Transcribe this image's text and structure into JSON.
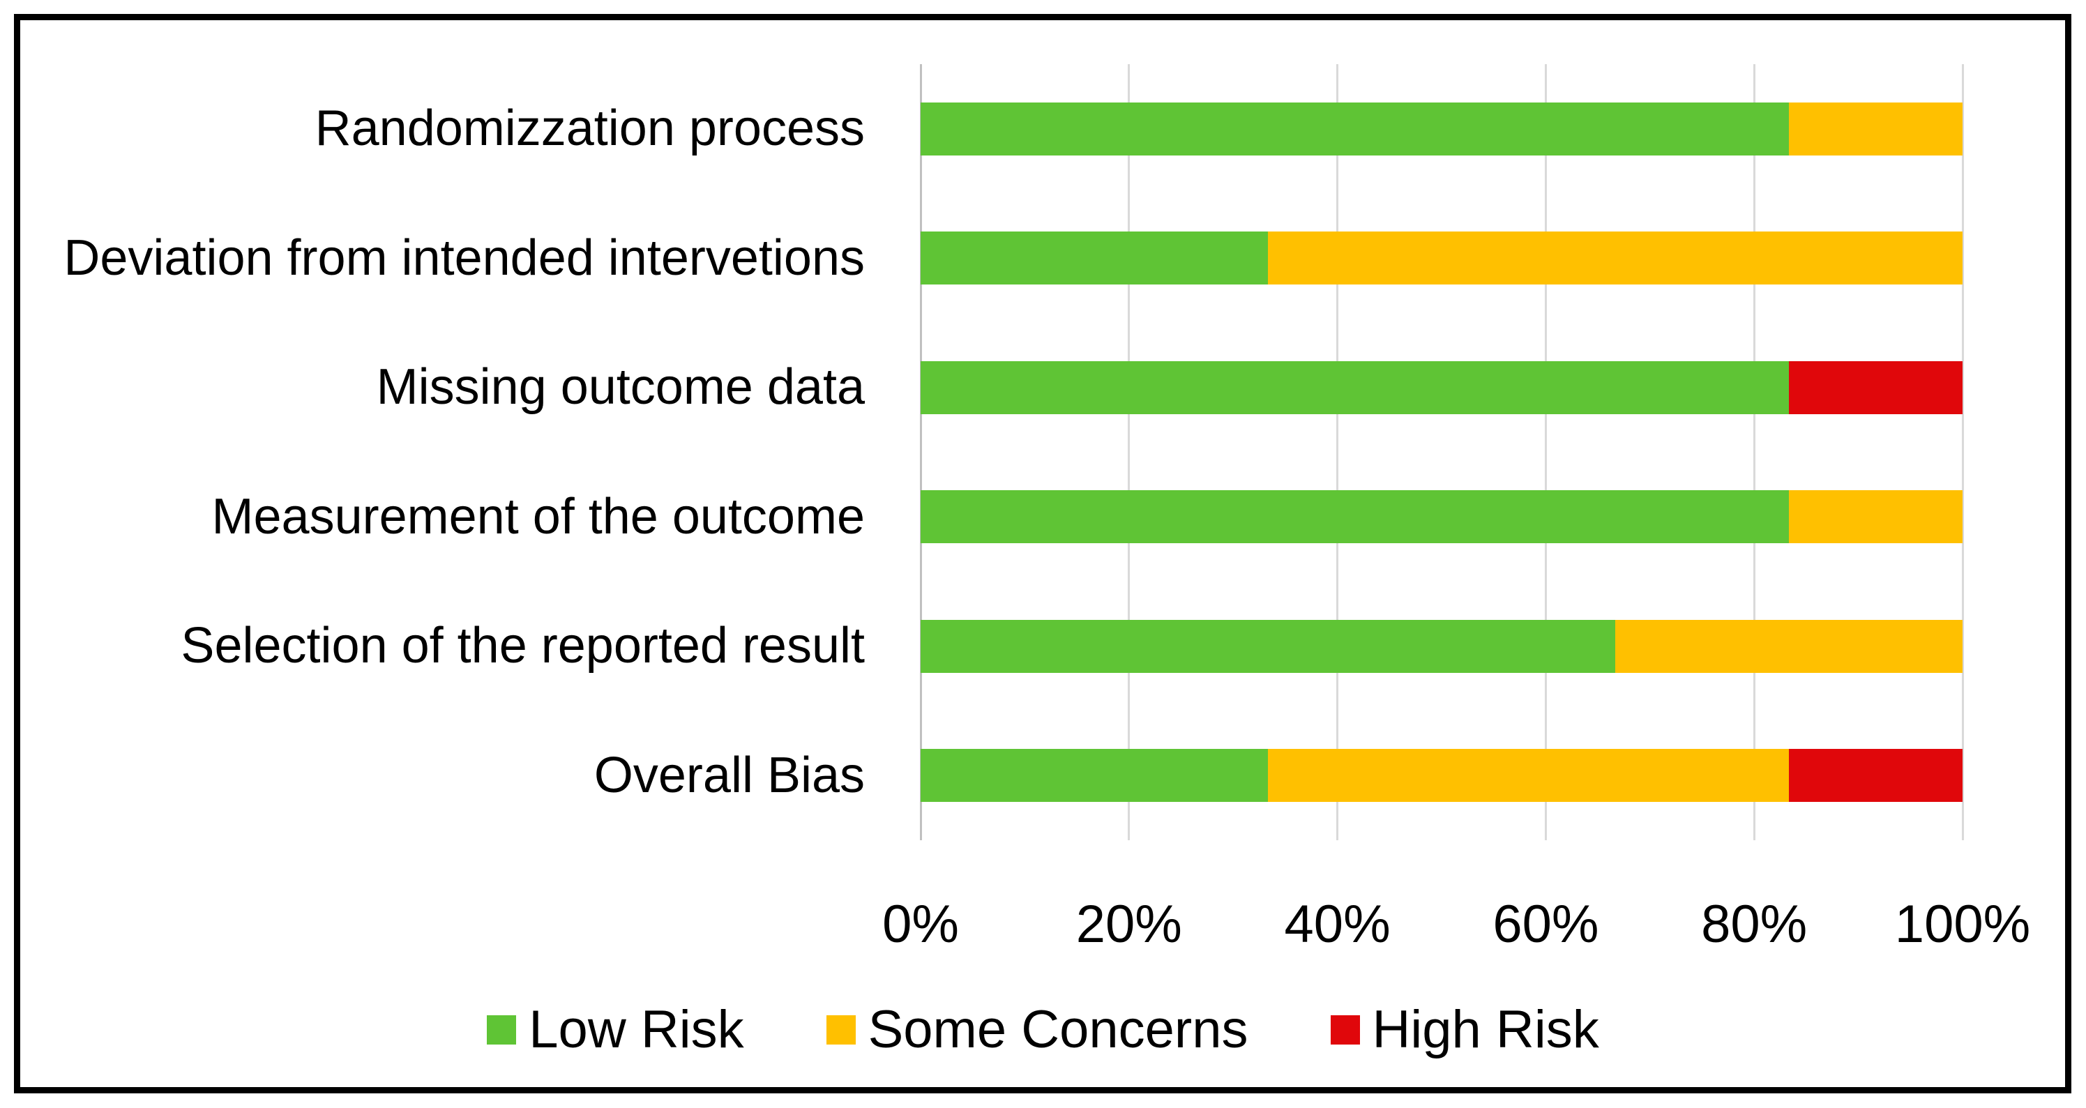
{
  "figure": {
    "border_color": "#000000",
    "background": "#FFFFFF",
    "axis_line_color": "#C0C0C0"
  },
  "chart_data": {
    "type": "bar",
    "orientation": "horizontal",
    "stacked": true,
    "title": "",
    "xlabel": "",
    "ylabel": "",
    "xlim": [
      0,
      100
    ],
    "grid": "vertical-only",
    "gridline_color": "#D9D9D9",
    "legend_position": "bottom",
    "categories": [
      "Randomizzation process",
      "Deviation from intended intervetions",
      "Missing outcome data",
      "Measurement of the outcome",
      "Selection of the reported result",
      "Overall Bias"
    ],
    "series": [
      {
        "name": "Low Risk",
        "color": "#5FC435",
        "values": [
          83.33,
          33.33,
          83.33,
          83.33,
          66.67,
          33.33
        ]
      },
      {
        "name": "Some Concerns",
        "color": "#FFC000",
        "values": [
          16.67,
          66.67,
          0,
          16.67,
          33.33,
          50.0
        ]
      },
      {
        "name": "High Risk",
        "color": "#E0070B",
        "values": [
          0,
          0,
          16.67,
          0,
          0,
          16.67
        ]
      }
    ],
    "x_ticks": [
      "0%",
      "20%",
      "40%",
      "60%",
      "80%",
      "100%"
    ]
  }
}
